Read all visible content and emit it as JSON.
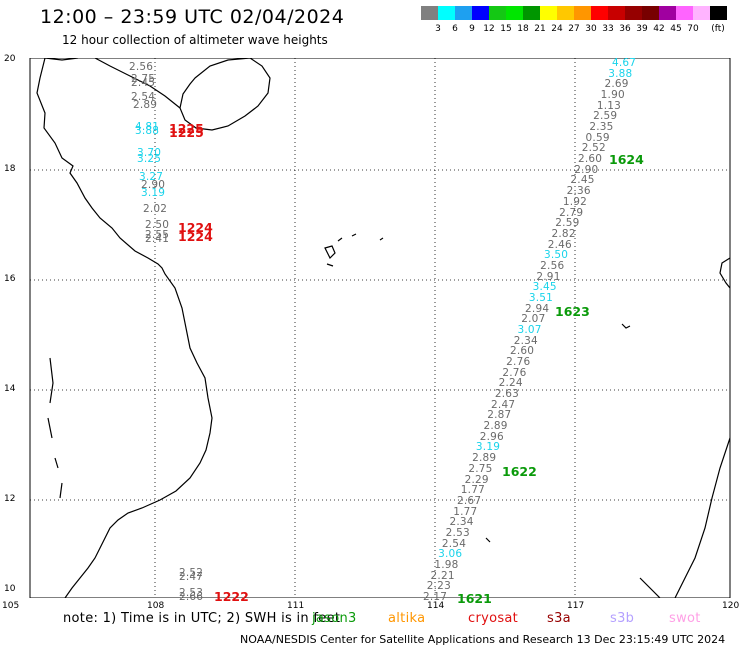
{
  "title": "12:00 – 23:59 UTC 02/04/2024",
  "subtitle": "12 hour collection of altimeter wave heights",
  "legend": {
    "colors": [
      "#808080",
      "#00ffff",
      "#1ea0f0",
      "#0000ff",
      "#14c814",
      "#00e600",
      "#009600",
      "#ffff00",
      "#ffc800",
      "#ff9600",
      "#ff0000",
      "#c80000",
      "#960000",
      "#780000",
      "#a000a0",
      "#ff64ff",
      "#ffb4ff",
      "#000000"
    ],
    "labels": [
      "3",
      "6",
      "9",
      "12",
      "15",
      "18",
      "21",
      "24",
      "27",
      "30",
      "33",
      "36",
      "39",
      "42",
      "45",
      "70",
      "(ft)"
    ],
    "unit": "(ft)"
  },
  "axes": {
    "lon_labels": [
      "105",
      "108",
      "111",
      "114",
      "117",
      "120"
    ],
    "lat_labels": [
      "20",
      "18",
      "16",
      "14",
      "12",
      "10"
    ]
  },
  "tracks": {
    "left_track": [
      {
        "v": "2.56",
        "c": "g"
      },
      {
        "v": "2.75",
        "c": "g"
      },
      {
        "v": "2.45",
        "c": "g"
      },
      {
        "v": "2.54",
        "c": "g"
      },
      {
        "v": "2.89",
        "c": "g"
      },
      {
        "v": "4.81",
        "c": "c"
      },
      {
        "v": "3.88",
        "c": "c"
      },
      {
        "v": "3.70",
        "c": "c"
      },
      {
        "v": "3.25",
        "c": "c"
      },
      {
        "v": "3.27",
        "c": "c"
      },
      {
        "v": "2.90",
        "c": "g"
      },
      {
        "v": "3.19",
        "c": "c"
      },
      {
        "v": "2.02",
        "c": "g"
      },
      {
        "v": "2.50",
        "c": "g"
      },
      {
        "v": "2.55",
        "c": "g"
      },
      {
        "v": "2.41",
        "c": "g"
      }
    ],
    "left_bottom": [
      {
        "v": "2.52",
        "c": "g"
      },
      {
        "v": "2.47",
        "c": "g"
      },
      {
        "v": "2.53",
        "c": "g"
      },
      {
        "v": "2.66",
        "c": "g"
      }
    ],
    "right_track": [
      {
        "v": "4.67",
        "c": "c"
      },
      {
        "v": "3.88",
        "c": "c"
      },
      {
        "v": "2.69",
        "c": "g"
      },
      {
        "v": "1.90",
        "c": "g"
      },
      {
        "v": "1.13",
        "c": "g"
      },
      {
        "v": "2.59",
        "c": "g"
      },
      {
        "v": "2.35",
        "c": "g"
      },
      {
        "v": "0.59",
        "c": "g"
      },
      {
        "v": "2.52",
        "c": "g"
      },
      {
        "v": "2.60",
        "c": "g"
      },
      {
        "v": "2.90",
        "c": "g"
      },
      {
        "v": "2.45",
        "c": "g"
      },
      {
        "v": "2.36",
        "c": "g"
      },
      {
        "v": "1.92",
        "c": "g"
      },
      {
        "v": "2.79",
        "c": "g"
      },
      {
        "v": "2.59",
        "c": "g"
      },
      {
        "v": "2.82",
        "c": "g"
      },
      {
        "v": "2.46",
        "c": "g"
      },
      {
        "v": "3.50",
        "c": "c"
      },
      {
        "v": "2.56",
        "c": "g"
      },
      {
        "v": "2.91",
        "c": "g"
      },
      {
        "v": "3.45",
        "c": "c"
      },
      {
        "v": "3.51",
        "c": "c"
      },
      {
        "v": "2.94",
        "c": "g"
      },
      {
        "v": "2.07",
        "c": "g"
      },
      {
        "v": "3.07",
        "c": "c"
      },
      {
        "v": "2.34",
        "c": "g"
      },
      {
        "v": "2.60",
        "c": "g"
      },
      {
        "v": "2.76",
        "c": "g"
      },
      {
        "v": "2.76",
        "c": "g"
      },
      {
        "v": "2.24",
        "c": "g"
      },
      {
        "v": "2.63",
        "c": "g"
      },
      {
        "v": "2.47",
        "c": "g"
      },
      {
        "v": "2.87",
        "c": "g"
      },
      {
        "v": "2.89",
        "c": "g"
      },
      {
        "v": "2.96",
        "c": "g"
      },
      {
        "v": "3.19",
        "c": "c"
      },
      {
        "v": "2.89",
        "c": "g"
      },
      {
        "v": "2.75",
        "c": "g"
      },
      {
        "v": "2.29",
        "c": "g"
      },
      {
        "v": "1.77",
        "c": "g"
      },
      {
        "v": "2.67",
        "c": "g"
      },
      {
        "v": "1.77",
        "c": "g"
      },
      {
        "v": "2.34",
        "c": "g"
      },
      {
        "v": "2.53",
        "c": "g"
      },
      {
        "v": "2.54",
        "c": "g"
      },
      {
        "v": "3.06",
        "c": "c"
      },
      {
        "v": "1.98",
        "c": "g"
      },
      {
        "v": "2.21",
        "c": "g"
      },
      {
        "v": "2.23",
        "c": "g"
      },
      {
        "v": "2.17",
        "c": "g"
      }
    ]
  },
  "time_labels": [
    {
      "t": "1225",
      "color": "red"
    },
    {
      "t": "1225",
      "color": "red"
    },
    {
      "t": "1224",
      "color": "red"
    },
    {
      "t": "1224",
      "color": "red"
    },
    {
      "t": "1222",
      "color": "red"
    },
    {
      "t": "1624",
      "color": "green"
    },
    {
      "t": "1623",
      "color": "green"
    },
    {
      "t": "1622",
      "color": "green"
    },
    {
      "t": "1621",
      "color": "green"
    }
  ],
  "note": "note: 1) Time is in UTC; 2) SWH is in feet",
  "satellites": [
    {
      "name": "jason3",
      "color": "#0a9a0a"
    },
    {
      "name": "altika",
      "color": "#ff9600"
    },
    {
      "name": "cryosat",
      "color": "#e01010"
    },
    {
      "name": "s3a",
      "color": "#960000"
    },
    {
      "name": "s3b",
      "color": "#b4a0ff"
    },
    {
      "name": "swot",
      "color": "#ffa0e6"
    }
  ],
  "footer": "NOAA/NESDIS Center for Satellite Applications and Research    13 Dec 23:15:49 UTC 2024"
}
